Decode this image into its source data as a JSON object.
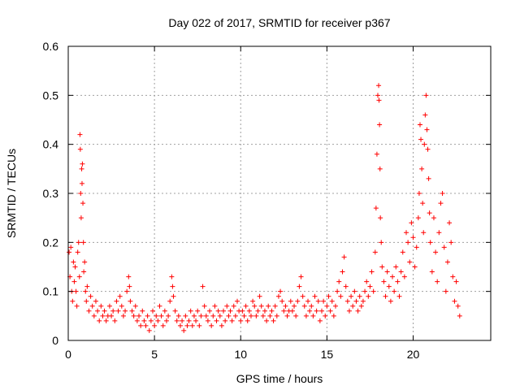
{
  "chart_data": {
    "type": "scatter",
    "title": "Day 022 of 2017, SRMTID for receiver p367",
    "xlabel": "GPS time / hours",
    "ylabel": "SRMTID / TECUs",
    "xlim": [
      0,
      24.5
    ],
    "ylim": [
      0,
      0.6
    ],
    "xticks": [
      0,
      5,
      10,
      15,
      20
    ],
    "yticks": [
      0,
      0.1,
      0.2,
      0.3,
      0.4,
      0.5,
      0.6
    ],
    "xtick_labels": [
      "0",
      "5",
      "10",
      "15",
      "20"
    ],
    "ytick_labels": [
      "0",
      "0.1",
      "0.2",
      "0.3",
      "0.4",
      "0.5",
      "0.6"
    ],
    "grid": true,
    "marker": "+",
    "series": [
      {
        "name": "SRMTID",
        "color": "#ff0000",
        "points": [
          [
            0.05,
            0.18
          ],
          [
            0.1,
            0.13
          ],
          [
            0.15,
            0.19
          ],
          [
            0.2,
            0.1
          ],
          [
            0.25,
            0.08
          ],
          [
            0.3,
            0.16
          ],
          [
            0.35,
            0.12
          ],
          [
            0.4,
            0.15
          ],
          [
            0.45,
            0.1
          ],
          [
            0.5,
            0.07
          ],
          [
            0.55,
            0.18
          ],
          [
            0.6,
            0.2
          ],
          [
            0.65,
            0.13
          ],
          [
            0.68,
            0.42
          ],
          [
            0.7,
            0.39
          ],
          [
            0.72,
            0.3
          ],
          [
            0.75,
            0.25
          ],
          [
            0.78,
            0.35
          ],
          [
            0.8,
            0.32
          ],
          [
            0.82,
            0.36
          ],
          [
            0.85,
            0.28
          ],
          [
            0.88,
            0.2
          ],
          [
            0.9,
            0.14
          ],
          [
            0.95,
            0.16
          ],
          [
            1.0,
            0.1
          ],
          [
            1.05,
            0.08
          ],
          [
            1.1,
            0.11
          ],
          [
            1.2,
            0.06
          ],
          [
            1.3,
            0.09
          ],
          [
            1.4,
            0.07
          ],
          [
            1.5,
            0.05
          ],
          [
            1.6,
            0.08
          ],
          [
            1.7,
            0.06
          ],
          [
            1.8,
            0.04
          ],
          [
            1.9,
            0.07
          ],
          [
            2.0,
            0.05
          ],
          [
            2.1,
            0.06
          ],
          [
            2.2,
            0.04
          ],
          [
            2.3,
            0.05
          ],
          [
            2.4,
            0.07
          ],
          [
            2.5,
            0.05
          ],
          [
            2.6,
            0.06
          ],
          [
            2.7,
            0.04
          ],
          [
            2.8,
            0.08
          ],
          [
            2.9,
            0.06
          ],
          [
            3.0,
            0.09
          ],
          [
            3.1,
            0.07
          ],
          [
            3.2,
            0.05
          ],
          [
            3.3,
            0.06
          ],
          [
            3.4,
            0.1
          ],
          [
            3.5,
            0.13
          ],
          [
            3.55,
            0.11
          ],
          [
            3.6,
            0.08
          ],
          [
            3.7,
            0.06
          ],
          [
            3.8,
            0.05
          ],
          [
            3.9,
            0.07
          ],
          [
            4.0,
            0.04
          ],
          [
            4.1,
            0.05
          ],
          [
            4.2,
            0.03
          ],
          [
            4.3,
            0.06
          ],
          [
            4.4,
            0.04
          ],
          [
            4.5,
            0.03
          ],
          [
            4.6,
            0.05
          ],
          [
            4.7,
            0.02
          ],
          [
            4.8,
            0.04
          ],
          [
            4.9,
            0.06
          ],
          [
            5.0,
            0.03
          ],
          [
            5.1,
            0.05
          ],
          [
            5.2,
            0.04
          ],
          [
            5.3,
            0.07
          ],
          [
            5.4,
            0.05
          ],
          [
            5.5,
            0.03
          ],
          [
            5.6,
            0.06
          ],
          [
            5.7,
            0.04
          ],
          [
            5.8,
            0.05
          ],
          [
            5.9,
            0.08
          ],
          [
            6.0,
            0.13
          ],
          [
            6.05,
            0.11
          ],
          [
            6.1,
            0.09
          ],
          [
            6.2,
            0.06
          ],
          [
            6.3,
            0.04
          ],
          [
            6.4,
            0.05
          ],
          [
            6.5,
            0.03
          ],
          [
            6.6,
            0.04
          ],
          [
            6.7,
            0.02
          ],
          [
            6.8,
            0.05
          ],
          [
            6.9,
            0.03
          ],
          [
            7.0,
            0.04
          ],
          [
            7.1,
            0.06
          ],
          [
            7.2,
            0.03
          ],
          [
            7.3,
            0.05
          ],
          [
            7.4,
            0.04
          ],
          [
            7.5,
            0.06
          ],
          [
            7.6,
            0.03
          ],
          [
            7.7,
            0.05
          ],
          [
            7.8,
            0.11
          ],
          [
            7.9,
            0.07
          ],
          [
            8.0,
            0.05
          ],
          [
            8.1,
            0.04
          ],
          [
            8.2,
            0.06
          ],
          [
            8.3,
            0.03
          ],
          [
            8.4,
            0.05
          ],
          [
            8.5,
            0.07
          ],
          [
            8.6,
            0.04
          ],
          [
            8.7,
            0.06
          ],
          [
            8.8,
            0.05
          ],
          [
            8.9,
            0.03
          ],
          [
            9.0,
            0.06
          ],
          [
            9.1,
            0.04
          ],
          [
            9.2,
            0.07
          ],
          [
            9.3,
            0.05
          ],
          [
            9.4,
            0.06
          ],
          [
            9.5,
            0.04
          ],
          [
            9.6,
            0.07
          ],
          [
            9.7,
            0.05
          ],
          [
            9.8,
            0.08
          ],
          [
            9.9,
            0.06
          ],
          [
            10.0,
            0.04
          ],
          [
            10.1,
            0.06
          ],
          [
            10.2,
            0.05
          ],
          [
            10.3,
            0.07
          ],
          [
            10.4,
            0.04
          ],
          [
            10.5,
            0.06
          ],
          [
            10.6,
            0.05
          ],
          [
            10.7,
            0.08
          ],
          [
            10.8,
            0.07
          ],
          [
            10.9,
            0.05
          ],
          [
            11.0,
            0.06
          ],
          [
            11.1,
            0.09
          ],
          [
            11.2,
            0.07
          ],
          [
            11.3,
            0.05
          ],
          [
            11.4,
            0.06
          ],
          [
            11.5,
            0.04
          ],
          [
            11.6,
            0.07
          ],
          [
            11.7,
            0.05
          ],
          [
            11.8,
            0.06
          ],
          [
            11.9,
            0.04
          ],
          [
            12.0,
            0.07
          ],
          [
            12.1,
            0.05
          ],
          [
            12.2,
            0.09
          ],
          [
            12.3,
            0.1
          ],
          [
            12.4,
            0.08
          ],
          [
            12.5,
            0.06
          ],
          [
            12.6,
            0.07
          ],
          [
            12.7,
            0.05
          ],
          [
            12.8,
            0.06
          ],
          [
            12.9,
            0.08
          ],
          [
            13.0,
            0.06
          ],
          [
            13.1,
            0.07
          ],
          [
            13.2,
            0.05
          ],
          [
            13.3,
            0.08
          ],
          [
            13.4,
            0.11
          ],
          [
            13.5,
            0.13
          ],
          [
            13.6,
            0.09
          ],
          [
            13.7,
            0.07
          ],
          [
            13.8,
            0.05
          ],
          [
            13.9,
            0.08
          ],
          [
            14.0,
            0.06
          ],
          [
            14.1,
            0.07
          ],
          [
            14.2,
            0.05
          ],
          [
            14.3,
            0.09
          ],
          [
            14.4,
            0.06
          ],
          [
            14.5,
            0.08
          ],
          [
            14.6,
            0.04
          ],
          [
            14.7,
            0.06
          ],
          [
            14.8,
            0.08
          ],
          [
            14.9,
            0.05
          ],
          [
            15.0,
            0.07
          ],
          [
            15.1,
            0.09
          ],
          [
            15.2,
            0.06
          ],
          [
            15.3,
            0.08
          ],
          [
            15.4,
            0.05
          ],
          [
            15.5,
            0.07
          ],
          [
            15.6,
            0.1
          ],
          [
            15.7,
            0.12
          ],
          [
            15.8,
            0.09
          ],
          [
            15.9,
            0.14
          ],
          [
            16.0,
            0.17
          ],
          [
            16.1,
            0.11
          ],
          [
            16.2,
            0.08
          ],
          [
            16.3,
            0.06
          ],
          [
            16.4,
            0.09
          ],
          [
            16.5,
            0.07
          ],
          [
            16.6,
            0.1
          ],
          [
            16.7,
            0.08
          ],
          [
            16.8,
            0.06
          ],
          [
            16.9,
            0.09
          ],
          [
            17.0,
            0.07
          ],
          [
            17.1,
            0.08
          ],
          [
            17.2,
            0.1
          ],
          [
            17.3,
            0.12
          ],
          [
            17.4,
            0.09
          ],
          [
            17.5,
            0.11
          ],
          [
            17.6,
            0.14
          ],
          [
            17.7,
            0.1
          ],
          [
            17.8,
            0.18
          ],
          [
            17.85,
            0.27
          ],
          [
            17.9,
            0.38
          ],
          [
            17.95,
            0.5
          ],
          [
            18.0,
            0.52
          ],
          [
            18.02,
            0.49
          ],
          [
            18.05,
            0.44
          ],
          [
            18.08,
            0.35
          ],
          [
            18.1,
            0.25
          ],
          [
            18.15,
            0.2
          ],
          [
            18.2,
            0.15
          ],
          [
            18.3,
            0.12
          ],
          [
            18.4,
            0.09
          ],
          [
            18.5,
            0.14
          ],
          [
            18.6,
            0.11
          ],
          [
            18.7,
            0.08
          ],
          [
            18.8,
            0.13
          ],
          [
            18.9,
            0.1
          ],
          [
            19.0,
            0.15
          ],
          [
            19.1,
            0.12
          ],
          [
            19.2,
            0.09
          ],
          [
            19.3,
            0.14
          ],
          [
            19.4,
            0.18
          ],
          [
            19.5,
            0.13
          ],
          [
            19.6,
            0.22
          ],
          [
            19.7,
            0.2
          ],
          [
            19.8,
            0.16
          ],
          [
            19.9,
            0.24
          ],
          [
            20.0,
            0.21
          ],
          [
            20.1,
            0.15
          ],
          [
            20.2,
            0.19
          ],
          [
            20.3,
            0.25
          ],
          [
            20.35,
            0.3
          ],
          [
            20.4,
            0.44
          ],
          [
            20.45,
            0.41
          ],
          [
            20.5,
            0.35
          ],
          [
            20.55,
            0.28
          ],
          [
            20.6,
            0.22
          ],
          [
            20.65,
            0.4
          ],
          [
            20.7,
            0.46
          ],
          [
            20.75,
            0.5
          ],
          [
            20.8,
            0.43
          ],
          [
            20.85,
            0.39
          ],
          [
            20.9,
            0.33
          ],
          [
            20.95,
            0.26
          ],
          [
            21.0,
            0.2
          ],
          [
            21.1,
            0.14
          ],
          [
            21.2,
            0.25
          ],
          [
            21.3,
            0.18
          ],
          [
            21.4,
            0.12
          ],
          [
            21.5,
            0.22
          ],
          [
            21.6,
            0.28
          ],
          [
            21.7,
            0.3
          ],
          [
            21.8,
            0.19
          ],
          [
            21.9,
            0.1
          ],
          [
            22.0,
            0.16
          ],
          [
            22.1,
            0.24
          ],
          [
            22.2,
            0.2
          ],
          [
            22.3,
            0.13
          ],
          [
            22.4,
            0.08
          ],
          [
            22.5,
            0.12
          ],
          [
            22.6,
            0.07
          ],
          [
            22.7,
            0.05
          ]
        ]
      }
    ]
  }
}
